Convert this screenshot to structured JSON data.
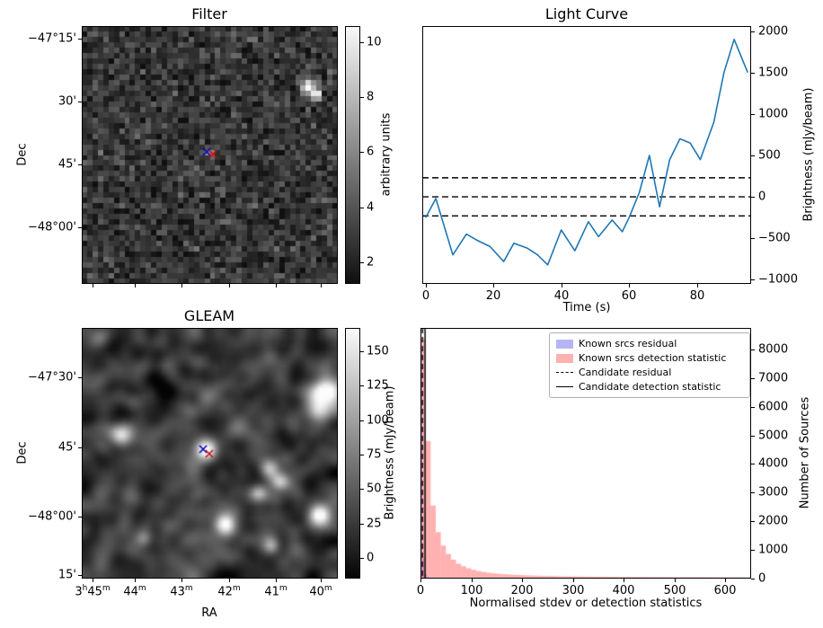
{
  "figure": {
    "background": "#ffffff"
  },
  "chart_data": [
    {
      "id": "filter",
      "type": "heatmap",
      "title": "Filter",
      "ylabel": "Dec",
      "yticks": {
        "labels": [
          "−47°15'",
          "30'",
          "45'",
          "−48°00'"
        ],
        "fractions": [
          0.049,
          0.293,
          0.537,
          0.781
        ]
      },
      "xticks": {
        "labels": [],
        "fractions": [
          0.042,
          0.207,
          0.39,
          0.575,
          0.758,
          0.933
        ]
      },
      "colorbar": {
        "label": "arbitrary units",
        "ticks": [
          2,
          4,
          6,
          8,
          10
        ],
        "range": [
          1.2,
          10.6
        ]
      },
      "image": {
        "grid": 48,
        "noise_mean": 2.8,
        "noise_sd": 0.9,
        "blur": 0,
        "contrast": 1.0,
        "blobs": [
          {
            "x": 0.885,
            "y": 0.235,
            "i": 9.5,
            "s": 0.018
          },
          {
            "x": 0.915,
            "y": 0.265,
            "i": 8.0,
            "s": 0.014
          },
          {
            "x": 0.5,
            "y": 0.49,
            "i": 5.5,
            "s": 0.012
          }
        ]
      },
      "markers": [
        {
          "shape": "x",
          "color": "#0000bb",
          "x": 0.488,
          "y": 0.488
        },
        {
          "shape": "x",
          "color": "#cc1111",
          "x": 0.512,
          "y": 0.497
        }
      ]
    },
    {
      "id": "lightcurve",
      "type": "line",
      "title": "Light Curve",
      "xlabel": "Time (s)",
      "ylabel": "Brightness (mJy/beam)",
      "line_color": "#1f77b4",
      "xlim": [
        -1,
        96
      ],
      "ylim": [
        -1050,
        2060
      ],
      "xticks": [
        0,
        20,
        40,
        60,
        80
      ],
      "yticks": [
        -1000,
        -500,
        0,
        500,
        1000,
        1500,
        2000
      ],
      "thresholds": [
        230,
        0,
        -230
      ],
      "x": [
        0,
        3,
        8,
        12,
        15,
        19,
        23,
        26,
        30,
        33,
        36,
        40,
        44,
        48,
        51,
        55,
        58,
        60,
        63,
        66,
        69,
        72,
        75,
        78,
        81,
        85,
        88,
        91,
        95
      ],
      "y": [
        -250,
        -20,
        -700,
        -450,
        -520,
        -600,
        -780,
        -560,
        -620,
        -700,
        -820,
        -400,
        -650,
        -300,
        -480,
        -280,
        -420,
        -250,
        50,
        500,
        -120,
        450,
        700,
        650,
        450,
        900,
        1500,
        1900,
        1500
      ]
    },
    {
      "id": "gleam",
      "type": "heatmap",
      "title": "GLEAM",
      "xlabel": "RA",
      "ylabel": "Dec",
      "yticks": {
        "labels": [
          "−47°30'",
          "45'",
          "−48°00'",
          "15'"
        ],
        "fractions": [
          0.197,
          0.477,
          0.753,
          0.986
        ]
      },
      "xticks": {
        "labels": [
          "3h45m",
          "44m",
          "43m",
          "42m",
          "41m",
          "40m"
        ],
        "fractions": [
          0.042,
          0.207,
          0.39,
          0.575,
          0.758,
          0.933
        ]
      },
      "colorbar": {
        "label": "Brightness (mJy/beam)",
        "ticks": [
          0,
          25,
          50,
          75,
          100,
          125,
          150
        ],
        "range": [
          -15,
          167
        ]
      },
      "image": {
        "grid": 64,
        "noise_mean": 25,
        "noise_sd": 30,
        "blur": 3,
        "contrast": 2.2,
        "blobs": [
          {
            "x": 0.95,
            "y": 0.26,
            "i": 175,
            "s": 0.045
          },
          {
            "x": 0.92,
            "y": 0.34,
            "i": 70,
            "s": 0.035
          },
          {
            "x": 0.155,
            "y": 0.43,
            "i": 150,
            "s": 0.032
          },
          {
            "x": 0.488,
            "y": 0.487,
            "i": 160,
            "s": 0.03
          },
          {
            "x": 0.733,
            "y": 0.563,
            "i": 110,
            "s": 0.026
          },
          {
            "x": 0.775,
            "y": 0.615,
            "i": 95,
            "s": 0.024
          },
          {
            "x": 0.69,
            "y": 0.66,
            "i": 85,
            "s": 0.022
          },
          {
            "x": 0.561,
            "y": 0.785,
            "i": 140,
            "s": 0.027
          },
          {
            "x": 0.926,
            "y": 0.742,
            "i": 155,
            "s": 0.03
          },
          {
            "x": 0.74,
            "y": 0.87,
            "i": 100,
            "s": 0.023
          },
          {
            "x": 0.067,
            "y": 0.045,
            "i": 75,
            "s": 0.028
          },
          {
            "x": 0.24,
            "y": 0.84,
            "i": 55,
            "s": 0.022
          }
        ]
      },
      "markers": [
        {
          "shape": "x",
          "color": "#0000bb",
          "x": 0.474,
          "y": 0.484
        },
        {
          "shape": "x",
          "color": "#cc1111",
          "x": 0.498,
          "y": 0.502
        }
      ]
    },
    {
      "id": "histogram",
      "type": "histogram",
      "xlabel": "Normalised stdev or detection statistics",
      "ylabel": "Number of Sources",
      "xlim": [
        0,
        651
      ],
      "ylim": [
        0,
        8750
      ],
      "xticks": [
        0,
        100,
        200,
        300,
        400,
        500,
        600
      ],
      "yticks": [
        0,
        1000,
        2000,
        3000,
        4000,
        5000,
        6000,
        7000,
        8000
      ],
      "series": [
        {
          "name": "Known srcs residual",
          "color": "rgba(70,70,230,0.4)",
          "bin_width": 4,
          "counts": [
            8000,
            700,
            150,
            60,
            25,
            10
          ]
        },
        {
          "name": "Known srcs detection statistic",
          "color": "rgba(255,60,60,0.4)",
          "bin_width": 10,
          "counts": [
            8350,
            4800,
            2550,
            1620,
            1150,
            860,
            660,
            520,
            430,
            360,
            305,
            262,
            230,
            204,
            184,
            168,
            154,
            143,
            133,
            125,
            118,
            111,
            106,
            101,
            96,
            92,
            89,
            85,
            82,
            79,
            77,
            74,
            72,
            70,
            68,
            67,
            65,
            64,
            62,
            61,
            60,
            58,
            57,
            56,
            55,
            54,
            53,
            53,
            52,
            51,
            50,
            50,
            49,
            48,
            48,
            47,
            47,
            46,
            46,
            45,
            45,
            44,
            44,
            43,
            43
          ]
        }
      ],
      "vlines": [
        {
          "name": "Candidate residual",
          "style": "dashed",
          "x": 4
        },
        {
          "name": "Candidate detection statistic",
          "style": "solid",
          "x": 9
        }
      ],
      "legend": [
        {
          "label": "Known srcs residual",
          "swatch": "patch",
          "color": "rgba(70,70,230,0.4)"
        },
        {
          "label": "Known srcs detection statistic",
          "swatch": "patch",
          "color": "rgba(255,60,60,0.4)"
        },
        {
          "label": "Candidate residual",
          "swatch": "line-dashed",
          "color": "#000000"
        },
        {
          "label": "Candidate detection statistic",
          "swatch": "line-solid",
          "color": "#000000"
        }
      ]
    }
  ]
}
